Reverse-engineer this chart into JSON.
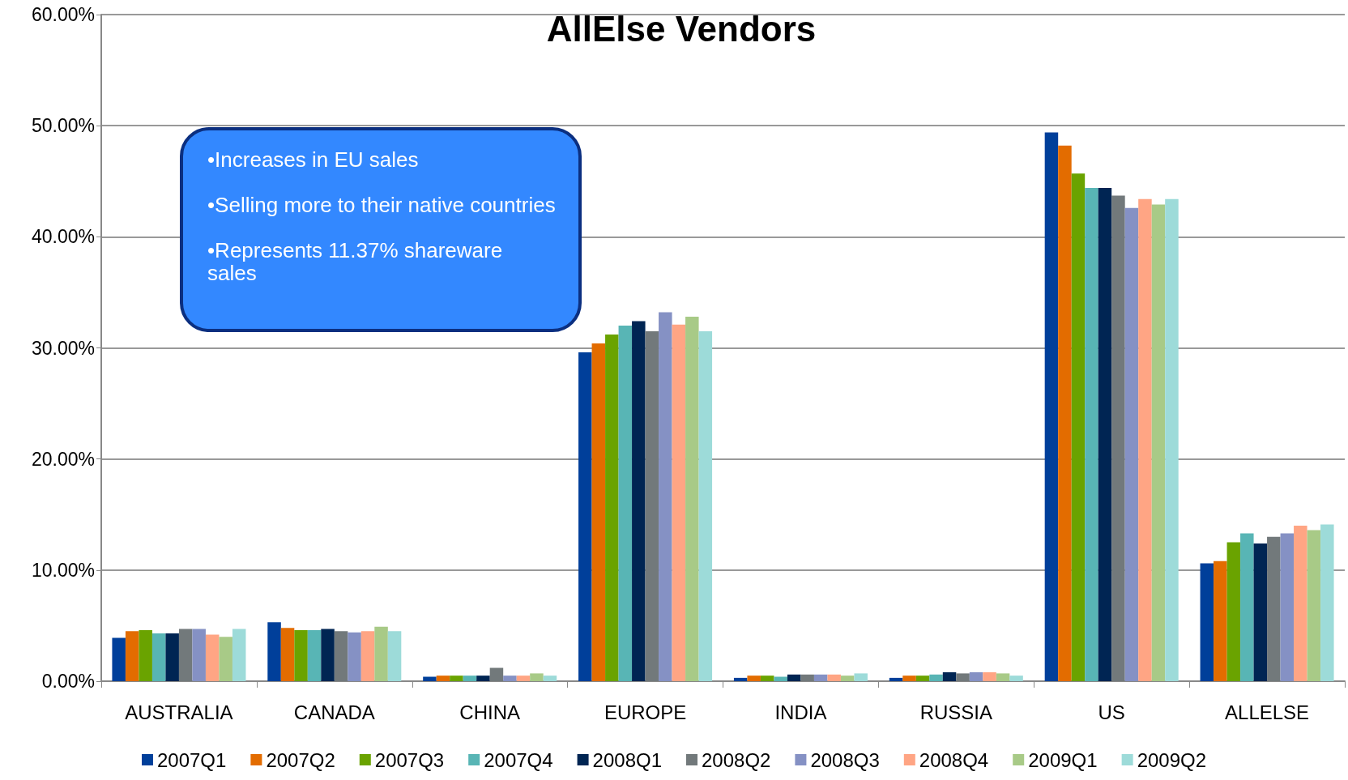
{
  "chart_data": {
    "type": "bar",
    "title": "AllElse Vendors",
    "categories": [
      "AUSTRALIA",
      "CANADA",
      "CHINA",
      "EUROPE",
      "INDIA",
      "RUSSIA",
      "US",
      "ALLELSE"
    ],
    "series": [
      {
        "name": "2007Q1",
        "color": "#003f9a",
        "values": [
          3.9,
          5.3,
          0.4,
          29.6,
          0.3,
          0.3,
          49.4,
          10.6
        ]
      },
      {
        "name": "2007Q2",
        "color": "#e36c00",
        "values": [
          4.5,
          4.8,
          0.5,
          30.4,
          0.5,
          0.5,
          48.2,
          10.8
        ]
      },
      {
        "name": "2007Q3",
        "color": "#6aa300",
        "values": [
          4.6,
          4.6,
          0.5,
          31.2,
          0.5,
          0.5,
          45.7,
          12.5
        ]
      },
      {
        "name": "2007Q4",
        "color": "#58b5b5",
        "values": [
          4.3,
          4.6,
          0.5,
          32.0,
          0.4,
          0.6,
          44.4,
          13.3
        ]
      },
      {
        "name": "2008Q1",
        "color": "#002553",
        "values": [
          4.3,
          4.7,
          0.5,
          32.4,
          0.6,
          0.8,
          44.4,
          12.4
        ]
      },
      {
        "name": "2008Q2",
        "color": "#72797b",
        "values": [
          4.7,
          4.5,
          1.2,
          31.5,
          0.6,
          0.7,
          43.7,
          13.0
        ]
      },
      {
        "name": "2008Q3",
        "color": "#8591c4",
        "values": [
          4.7,
          4.4,
          0.5,
          33.2,
          0.6,
          0.8,
          42.6,
          13.3
        ]
      },
      {
        "name": "2008Q4",
        "color": "#ffa584",
        "values": [
          4.2,
          4.5,
          0.5,
          32.1,
          0.6,
          0.8,
          43.4,
          14.0
        ]
      },
      {
        "name": "2009Q1",
        "color": "#a8ca87",
        "values": [
          4.0,
          4.9,
          0.7,
          32.8,
          0.5,
          0.7,
          42.9,
          13.6
        ]
      },
      {
        "name": "2009Q2",
        "color": "#9ddbd9",
        "values": [
          4.7,
          4.5,
          0.5,
          31.5,
          0.7,
          0.5,
          43.4,
          14.1
        ]
      }
    ],
    "ylim": [
      0,
      60
    ],
    "yticks": [
      {
        "value": 0,
        "label": "0.00%"
      },
      {
        "value": 10,
        "label": "10.00%"
      },
      {
        "value": 20,
        "label": "20.00%"
      },
      {
        "value": 30,
        "label": "30.00%"
      },
      {
        "value": 40,
        "label": "40.00%"
      },
      {
        "value": 50,
        "label": "50.00%"
      },
      {
        "value": 60,
        "label": "60.00%"
      }
    ],
    "grid": "y",
    "legend": "bottom",
    "annotations": [
      "•Increases in EU sales",
      "•Selling more to their native countries",
      "•Represents 11.37%  shareware sales"
    ]
  }
}
